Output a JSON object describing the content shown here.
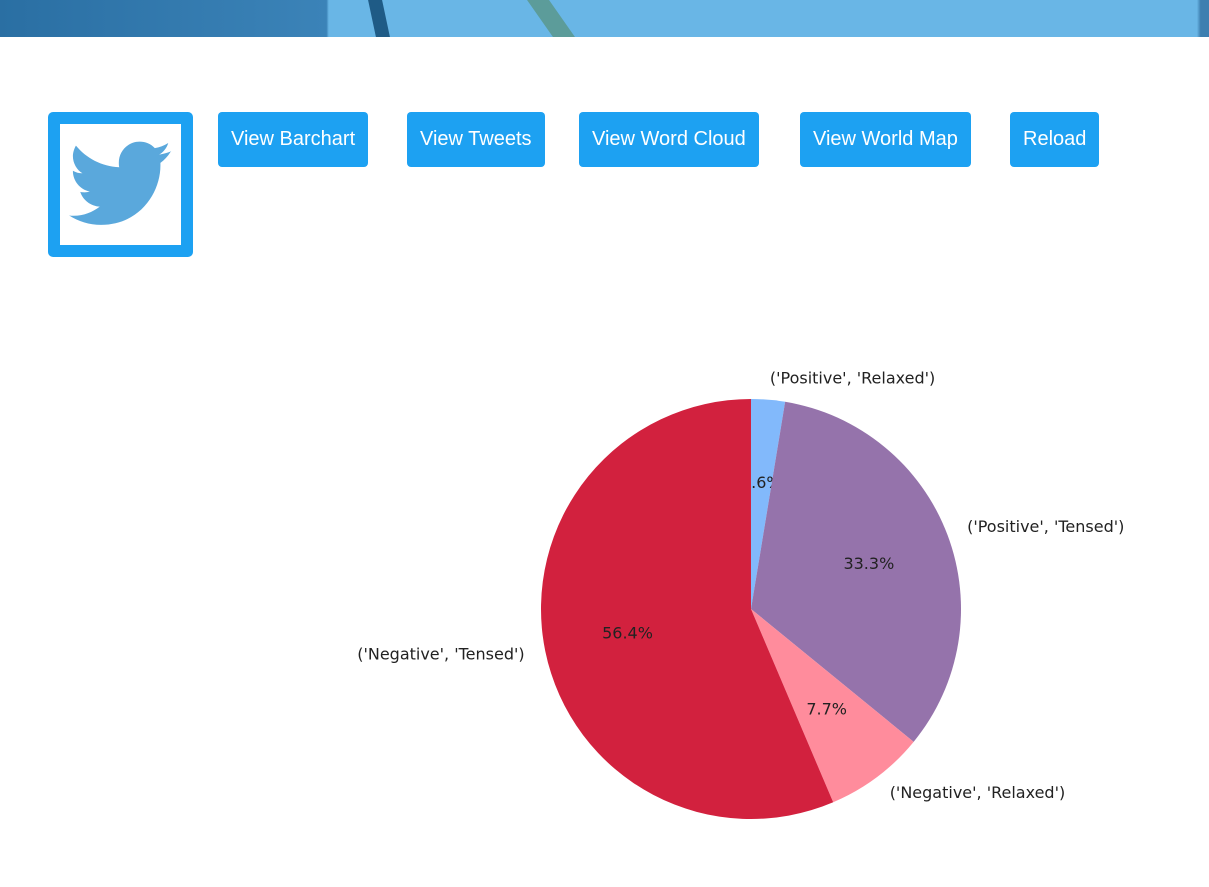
{
  "nav": {
    "buttons": [
      "View Barchart",
      "View Tweets",
      "View Word Cloud",
      "View World Map",
      "Reload"
    ]
  },
  "colors": {
    "accent": "#1da1f2",
    "logo_bird": "#5aa8dc"
  },
  "chart_data": {
    "type": "pie",
    "labels": [
      "('Positive', 'Relaxed')",
      "('Positive', 'Tensed')",
      "('Negative', 'Relaxed')",
      "('Negative', 'Tensed')"
    ],
    "values": [
      2.6,
      33.3,
      7.7,
      56.4
    ],
    "pct_labels": [
      "2.6%",
      "33.3%",
      "7.7%",
      "56.4%"
    ],
    "colors": [
      "#82b9fb",
      "#9573ab",
      "#ff8c9c",
      "#d2213e"
    ],
    "start_angle": 90,
    "direction": "clockwise"
  }
}
